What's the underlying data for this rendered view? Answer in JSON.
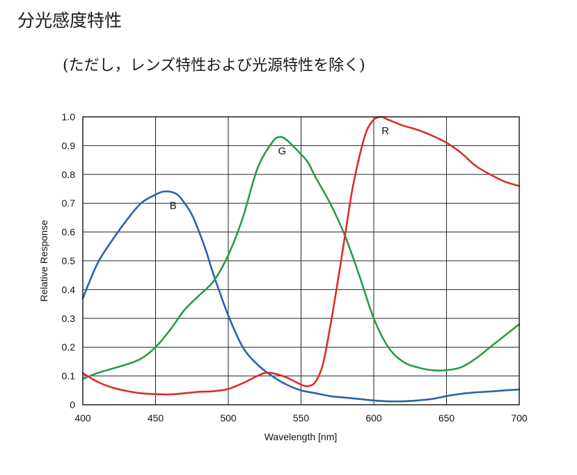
{
  "page": {
    "title": "分光感度特性",
    "subtitle": "(ただし，レンズ特性および光源特性を除く)"
  },
  "chart_data": {
    "type": "line",
    "title": "",
    "xlabel": "Wavelength [nm]",
    "ylabel": "Relative Response",
    "xlim": [
      400,
      700
    ],
    "ylim": [
      0,
      1.0
    ],
    "grid": true,
    "legend": "none",
    "x_ticks": [
      "400",
      "450",
      "500",
      "550",
      "600",
      "650",
      "700"
    ],
    "y_ticks": [
      "0",
      "0.1",
      "0.2",
      "0.3",
      "0.4",
      "0.5",
      "0.6",
      "0.7",
      "0.8",
      "0.9",
      "1.0"
    ],
    "series": [
      {
        "name": "B",
        "color": "#2a62a8",
        "label_at": [
          462,
          0.68
        ],
        "points": [
          [
            400,
            0.37
          ],
          [
            410,
            0.49
          ],
          [
            420,
            0.57
          ],
          [
            430,
            0.64
          ],
          [
            440,
            0.7
          ],
          [
            450,
            0.73
          ],
          [
            455,
            0.74
          ],
          [
            460,
            0.74
          ],
          [
            465,
            0.73
          ],
          [
            470,
            0.7
          ],
          [
            475,
            0.66
          ],
          [
            480,
            0.6
          ],
          [
            485,
            0.53
          ],
          [
            490,
            0.45
          ],
          [
            500,
            0.31
          ],
          [
            510,
            0.2
          ],
          [
            520,
            0.14
          ],
          [
            530,
            0.1
          ],
          [
            540,
            0.07
          ],
          [
            550,
            0.05
          ],
          [
            560,
            0.04
          ],
          [
            570,
            0.03
          ],
          [
            580,
            0.025
          ],
          [
            590,
            0.02
          ],
          [
            600,
            0.015
          ],
          [
            610,
            0.012
          ],
          [
            620,
            0.012
          ],
          [
            630,
            0.015
          ],
          [
            640,
            0.02
          ],
          [
            650,
            0.03
          ],
          [
            660,
            0.038
          ],
          [
            670,
            0.043
          ],
          [
            680,
            0.046
          ],
          [
            690,
            0.05
          ],
          [
            700,
            0.053
          ]
        ]
      },
      {
        "name": "G",
        "color": "#2a9a46",
        "label_at": [
          537,
          0.87
        ],
        "points": [
          [
            400,
            0.09
          ],
          [
            410,
            0.11
          ],
          [
            420,
            0.125
          ],
          [
            430,
            0.14
          ],
          [
            440,
            0.16
          ],
          [
            450,
            0.2
          ],
          [
            460,
            0.26
          ],
          [
            470,
            0.33
          ],
          [
            480,
            0.38
          ],
          [
            490,
            0.43
          ],
          [
            500,
            0.52
          ],
          [
            510,
            0.65
          ],
          [
            520,
            0.82
          ],
          [
            530,
            0.91
          ],
          [
            535,
            0.93
          ],
          [
            540,
            0.92
          ],
          [
            550,
            0.87
          ],
          [
            555,
            0.84
          ],
          [
            560,
            0.79
          ],
          [
            570,
            0.7
          ],
          [
            580,
            0.59
          ],
          [
            590,
            0.45
          ],
          [
            600,
            0.3
          ],
          [
            610,
            0.2
          ],
          [
            620,
            0.15
          ],
          [
            630,
            0.13
          ],
          [
            640,
            0.12
          ],
          [
            650,
            0.12
          ],
          [
            660,
            0.13
          ],
          [
            670,
            0.16
          ],
          [
            680,
            0.2
          ],
          [
            690,
            0.24
          ],
          [
            700,
            0.28
          ]
        ]
      },
      {
        "name": "R",
        "color": "#e02a2a",
        "label_at": [
          608,
          0.94
        ],
        "points": [
          [
            400,
            0.11
          ],
          [
            410,
            0.08
          ],
          [
            420,
            0.06
          ],
          [
            430,
            0.048
          ],
          [
            440,
            0.04
          ],
          [
            450,
            0.037
          ],
          [
            460,
            0.036
          ],
          [
            470,
            0.04
          ],
          [
            480,
            0.045
          ],
          [
            490,
            0.047
          ],
          [
            500,
            0.055
          ],
          [
            510,
            0.075
          ],
          [
            520,
            0.1
          ],
          [
            525,
            0.11
          ],
          [
            530,
            0.11
          ],
          [
            540,
            0.095
          ],
          [
            550,
            0.07
          ],
          [
            555,
            0.065
          ],
          [
            560,
            0.08
          ],
          [
            565,
            0.14
          ],
          [
            570,
            0.27
          ],
          [
            575,
            0.42
          ],
          [
            580,
            0.58
          ],
          [
            585,
            0.74
          ],
          [
            590,
            0.86
          ],
          [
            595,
            0.95
          ],
          [
            600,
            0.99
          ],
          [
            605,
            1.0
          ],
          [
            610,
            0.99
          ],
          [
            620,
            0.97
          ],
          [
            630,
            0.955
          ],
          [
            640,
            0.935
          ],
          [
            650,
            0.91
          ],
          [
            660,
            0.875
          ],
          [
            670,
            0.83
          ],
          [
            680,
            0.8
          ],
          [
            690,
            0.775
          ],
          [
            700,
            0.76
          ]
        ]
      }
    ]
  }
}
